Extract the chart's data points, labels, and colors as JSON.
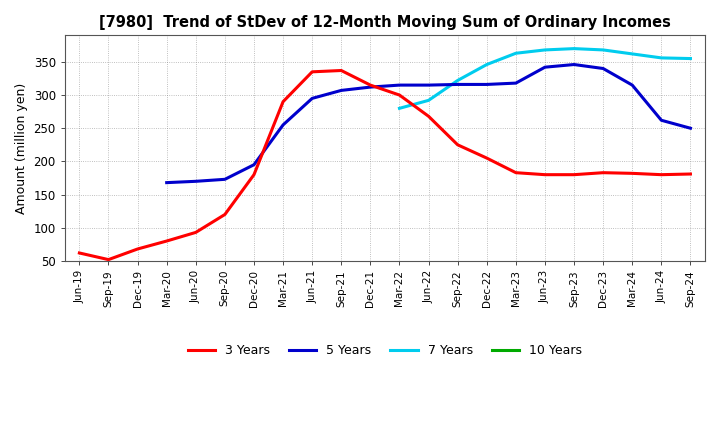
{
  "title": "[7980]  Trend of StDev of 12-Month Moving Sum of Ordinary Incomes",
  "ylabel": "Amount (million yen)",
  "background_color": "#ffffff",
  "grid_color": "#888888",
  "ylim": [
    50,
    390
  ],
  "yticks": [
    50,
    100,
    150,
    200,
    250,
    300,
    350
  ],
  "legend_labels": [
    "3 Years",
    "5 Years",
    "7 Years",
    "10 Years"
  ],
  "legend_colors": [
    "#ff0000",
    "#0000cc",
    "#00ccee",
    "#00aa00"
  ],
  "x_labels": [
    "Jun-19",
    "Sep-19",
    "Dec-19",
    "Mar-20",
    "Jun-20",
    "Sep-20",
    "Dec-20",
    "Mar-21",
    "Jun-21",
    "Sep-21",
    "Dec-21",
    "Mar-22",
    "Jun-22",
    "Sep-22",
    "Dec-22",
    "Mar-23",
    "Jun-23",
    "Sep-23",
    "Dec-23",
    "Mar-24",
    "Jun-24",
    "Sep-24"
  ],
  "series_3y_x": [
    0,
    1,
    2,
    3,
    4,
    5,
    6,
    7,
    8,
    9,
    10,
    11,
    12,
    13,
    14,
    15,
    16,
    17,
    18,
    19,
    20,
    21
  ],
  "series_3y_v": [
    62,
    52,
    68,
    80,
    93,
    120,
    180,
    290,
    335,
    337,
    315,
    300,
    268,
    225,
    205,
    183,
    180,
    180,
    183,
    182,
    180,
    181
  ],
  "series_5y_x": [
    3,
    4,
    5,
    6,
    7,
    8,
    9,
    10,
    11,
    12,
    13,
    14,
    15,
    16,
    17,
    18,
    19,
    20,
    21
  ],
  "series_5y_v": [
    168,
    170,
    173,
    195,
    255,
    295,
    307,
    312,
    315,
    315,
    316,
    316,
    318,
    342,
    346,
    340,
    315,
    262,
    250
  ],
  "series_7y_x": [
    11,
    12,
    13,
    14,
    15,
    16,
    17,
    18,
    19,
    20,
    21
  ],
  "series_7y_v": [
    280,
    292,
    322,
    346,
    363,
    368,
    370,
    368,
    362,
    356,
    355
  ],
  "series_10y_x": [],
  "series_10y_v": []
}
